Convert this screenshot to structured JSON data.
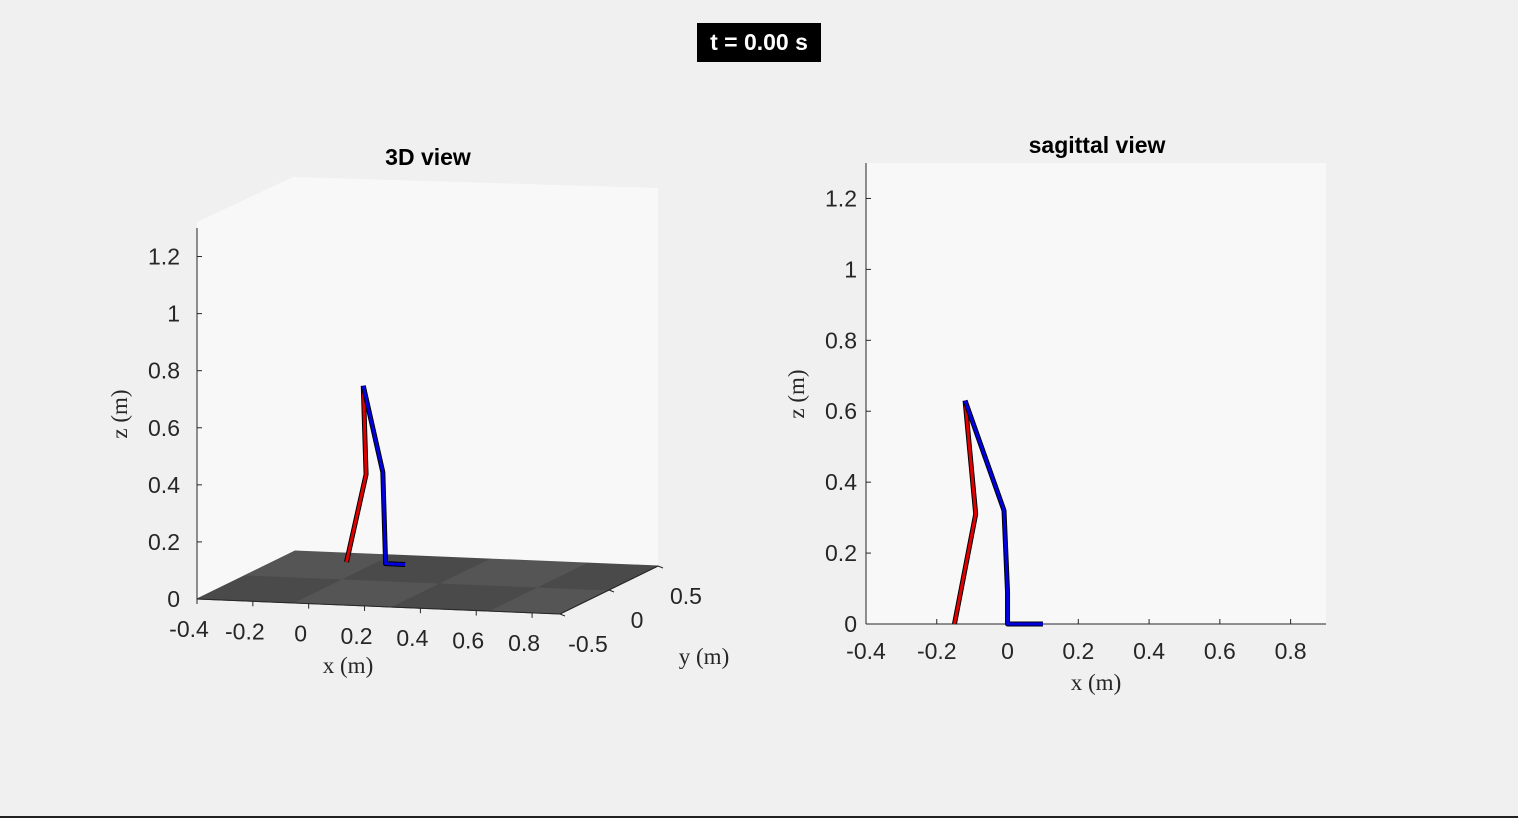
{
  "time_label": "t = 0.00 s",
  "colors": {
    "leg_red": "#e00000",
    "leg_blue": "#0000e0",
    "floor": "#4d4d4d",
    "axes_bg": "#f8f8f8"
  },
  "chart_data": [
    {
      "type": "line",
      "projection": "3d",
      "title": "3D view",
      "xlabel": "x (m)",
      "ylabel": "y (m)",
      "zlabel": "z (m)",
      "xlim": [
        -0.4,
        0.9
      ],
      "ylim": [
        -0.5,
        0.5
      ],
      "zlim": [
        0,
        1.3
      ],
      "x_ticks": [
        "-0.4",
        "-0.2",
        "0",
        "0.2",
        "0.4",
        "0.6",
        "0.8"
      ],
      "y_ticks": [
        "-0.5",
        "0",
        "0.5"
      ],
      "z_ticks": [
        "0",
        "0.2",
        "0.4",
        "0.6",
        "0.8",
        "1",
        "1.2"
      ],
      "series": [
        {
          "color": "#e00000",
          "points": [
            [
              -0.04,
              0,
              0.06
            ],
            [
              0.03,
              0,
              0.37
            ],
            [
              0.02,
              0,
              0.68
            ]
          ]
        },
        {
          "color": "#0000e0",
          "points": [
            [
              0.02,
              0,
              0.68
            ],
            [
              0.09,
              0,
              0.38
            ],
            [
              0.1,
              0,
              0.06
            ],
            [
              0.17,
              0,
              0.06
            ]
          ]
        }
      ]
    },
    {
      "type": "line",
      "title": "sagittal view",
      "xlabel": "x (m)",
      "ylabel": "z (m)",
      "xlim": [
        -0.4,
        0.9
      ],
      "ylim": [
        0,
        1.3
      ],
      "x_ticks": [
        "-0.4",
        "-0.2",
        "0",
        "0.2",
        "0.4",
        "0.6",
        "0.8"
      ],
      "y_ticks": [
        "0",
        "0.2",
        "0.4",
        "0.6",
        "0.8",
        "1",
        "1.2"
      ],
      "series": [
        {
          "color": "#e00000",
          "x": [
            -0.15,
            -0.09,
            -0.12
          ],
          "y": [
            0.0,
            0.31,
            0.63
          ]
        },
        {
          "color": "#0000e0",
          "x": [
            -0.12,
            -0.01,
            0.0,
            0.0,
            0.1
          ],
          "y": [
            0.63,
            0.32,
            0.09,
            0.0,
            0.0
          ]
        }
      ]
    }
  ]
}
